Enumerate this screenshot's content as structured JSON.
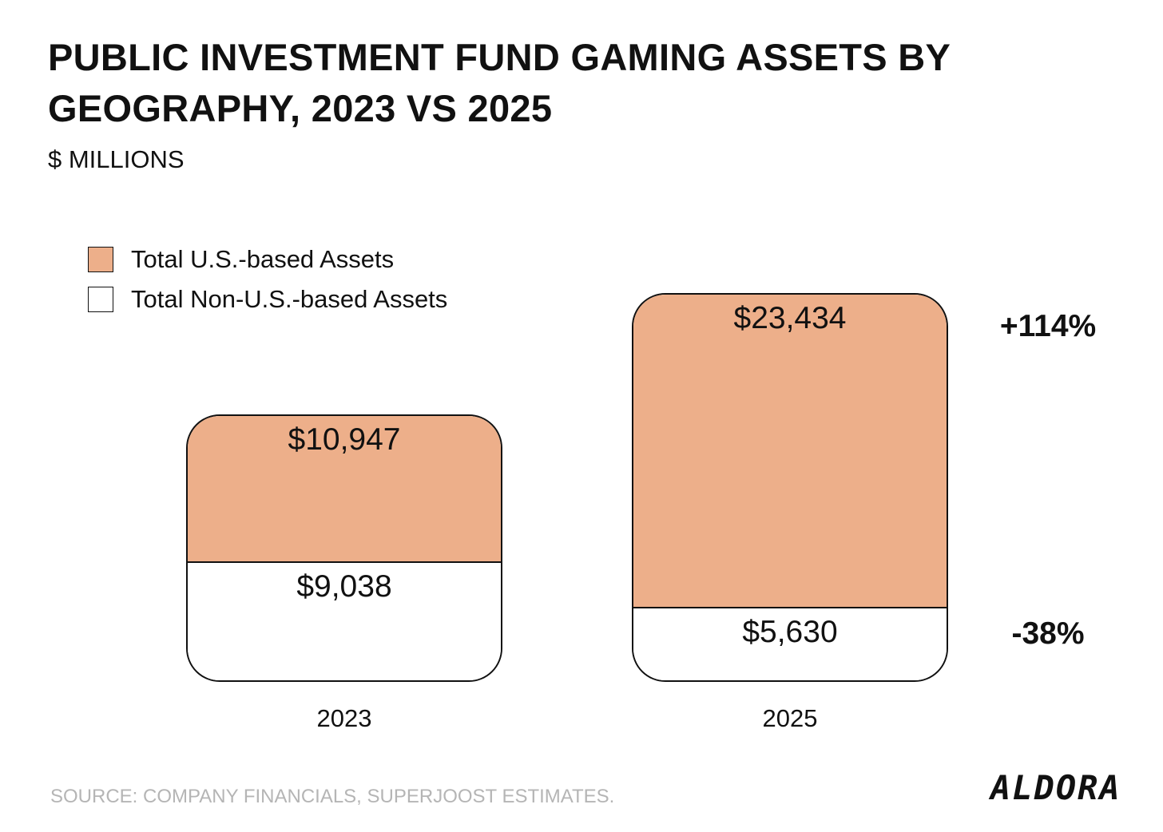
{
  "title": "PUBLIC INVESTMENT FUND GAMING ASSETS BY GEOGRAPHY, 2023 VS 2025",
  "subtitle": "$ MILLIONS",
  "source": "SOURCE: COMPANY FINANCIALS, SUPERJOOST ESTIMATES.",
  "logo": "ALDORA",
  "colors": {
    "us": "#EDAF8A",
    "non_us": "#FFFFFF",
    "outline": "#111111"
  },
  "chart_data": {
    "type": "bar",
    "stacked": true,
    "categories": [
      "2023",
      "2025"
    ],
    "series": [
      {
        "name": "Total Non-U.S.-based Assets",
        "values": [
          9038,
          5630
        ],
        "labels": [
          "$9,038",
          "$5,630"
        ],
        "color": "#FFFFFF"
      },
      {
        "name": "Total U.S.-based Assets",
        "values": [
          10947,
          23434
        ],
        "labels": [
          "$10,947",
          "$23,434"
        ],
        "color": "#EDAF8A"
      }
    ],
    "change_annotations": [
      {
        "series": "Total U.S.-based Assets",
        "text": "+114%"
      },
      {
        "series": "Total Non-U.S.-based Assets",
        "text": "-38%"
      }
    ],
    "legend": [
      "Total U.S.-based Assets",
      "Total Non-U.S.-based Assets"
    ],
    "legend_position": "top-left",
    "grid": false,
    "title": "PUBLIC INVESTMENT FUND GAMING ASSETS BY GEOGRAPHY, 2023 VS 2025",
    "ylabel": "$ MILLIONS"
  }
}
